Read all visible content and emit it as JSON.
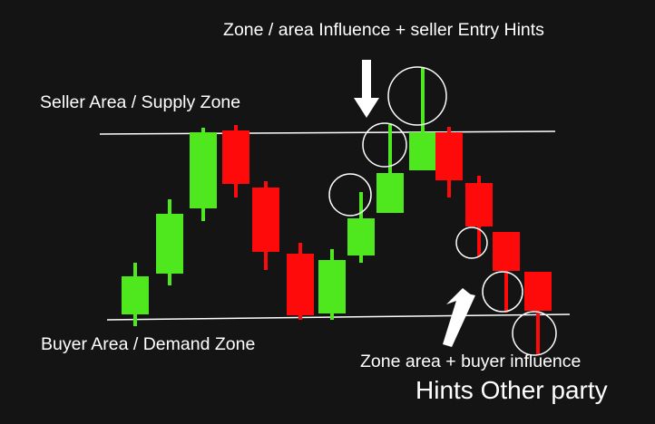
{
  "labels": {
    "top_hint": "Zone / area Influence + seller Entry Hints",
    "seller_area": "Seller Area / Supply Zone",
    "buyer_area": "Buyer Area /  Demand Zone",
    "buyer_hint": "Zone area + buyer influence",
    "other_party": "Hints Other party"
  },
  "colors": {
    "background": "#141414",
    "bullish": "#4fe81f",
    "bearish": "#ff0a0a",
    "zone_line": "#ffffff",
    "circle": "#ffffff",
    "arrow": "#ffffff"
  },
  "candles": [
    {
      "type": "bullish"
    },
    {
      "type": "bullish"
    },
    {
      "type": "bullish"
    },
    {
      "type": "bearish"
    },
    {
      "type": "bearish"
    },
    {
      "type": "bearish"
    },
    {
      "type": "bullish"
    },
    {
      "type": "bullish"
    },
    {
      "type": "bullish"
    },
    {
      "type": "bullish"
    },
    {
      "type": "bearish"
    },
    {
      "type": "bearish"
    },
    {
      "type": "bearish"
    },
    {
      "type": "bearish"
    }
  ],
  "icons": {
    "top_arrow": "arrow-down-icon",
    "bottom_arrow": "arrow-up-icon",
    "wick_circle": "circle-highlight"
  }
}
